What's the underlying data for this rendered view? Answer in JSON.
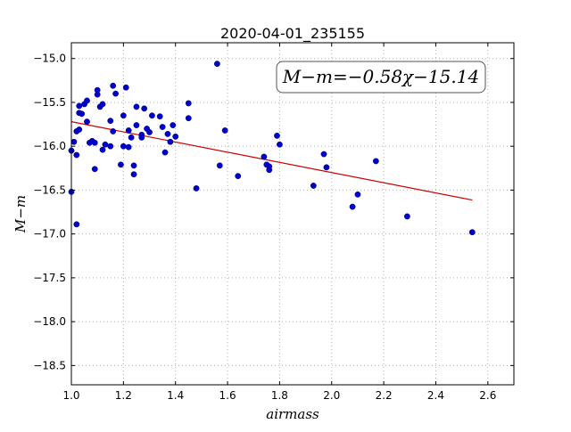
{
  "chart_data": {
    "type": "scatter",
    "title": "2020-04-01_235155",
    "xlabel": "airmass",
    "ylabel": "M−m",
    "xlim": [
      1.0,
      2.7
    ],
    "ylim": [
      -18.72,
      -14.82
    ],
    "y_inverted": true,
    "x_ticks": [
      1.0,
      1.2,
      1.4,
      1.6,
      1.8,
      2.0,
      2.2,
      2.4,
      2.6
    ],
    "x_tick_labels": [
      "1.0",
      "1.2",
      "1.4",
      "1.6",
      "1.8",
      "2.0",
      "2.2",
      "2.4",
      "2.6"
    ],
    "y_ticks": [
      -15.0,
      -15.5,
      -16.0,
      -16.5,
      -17.0,
      -17.5,
      -18.0,
      -18.5
    ],
    "y_tick_labels": [
      "−15.0",
      "−15.5",
      "−16.0",
      "−16.5",
      "−17.0",
      "−17.5",
      "−18.0",
      "−18.5"
    ],
    "grid": true,
    "annotation": "M−m=−0.58χ−15.14",
    "colors": {
      "points": "#0000cc",
      "fit_line": "#cc0000"
    },
    "fit": {
      "slope": -0.58,
      "intercept": -15.14,
      "x_range": [
        1.0,
        2.54
      ]
    },
    "series": [
      {
        "points": [
          [
            1.0,
            -16.52
          ],
          [
            1.0,
            -16.05
          ],
          [
            1.01,
            -15.95
          ],
          [
            1.02,
            -15.83
          ],
          [
            1.02,
            -16.1
          ],
          [
            1.02,
            -16.89
          ],
          [
            1.03,
            -15.54
          ],
          [
            1.03,
            -15.62
          ],
          [
            1.03,
            -15.81
          ],
          [
            1.04,
            -15.63
          ],
          [
            1.05,
            -15.52
          ],
          [
            1.06,
            -15.48
          ],
          [
            1.06,
            -15.72
          ],
          [
            1.07,
            -15.96
          ],
          [
            1.08,
            -15.94
          ],
          [
            1.09,
            -16.26
          ],
          [
            1.09,
            -15.96
          ],
          [
            1.1,
            -15.41
          ],
          [
            1.1,
            -15.36
          ],
          [
            1.11,
            -15.55
          ],
          [
            1.12,
            -15.52
          ],
          [
            1.12,
            -16.04
          ],
          [
            1.13,
            -15.98
          ],
          [
            1.15,
            -16.0
          ],
          [
            1.15,
            -15.71
          ],
          [
            1.16,
            -15.31
          ],
          [
            1.16,
            -15.83
          ],
          [
            1.17,
            -15.4
          ],
          [
            1.19,
            -16.21
          ],
          [
            1.2,
            -15.65
          ],
          [
            1.2,
            -16.0
          ],
          [
            1.21,
            -15.33
          ],
          [
            1.22,
            -15.82
          ],
          [
            1.22,
            -16.01
          ],
          [
            1.23,
            -15.9
          ],
          [
            1.24,
            -16.22
          ],
          [
            1.24,
            -16.32
          ],
          [
            1.25,
            -15.55
          ],
          [
            1.25,
            -15.76
          ],
          [
            1.27,
            -15.87
          ],
          [
            1.27,
            -15.9
          ],
          [
            1.28,
            -15.57
          ],
          [
            1.29,
            -15.8
          ],
          [
            1.3,
            -15.84
          ],
          [
            1.31,
            -15.65
          ],
          [
            1.34,
            -15.66
          ],
          [
            1.35,
            -15.78
          ],
          [
            1.36,
            -16.07
          ],
          [
            1.37,
            -15.86
          ],
          [
            1.38,
            -15.95
          ],
          [
            1.39,
            -15.76
          ],
          [
            1.4,
            -15.89
          ],
          [
            1.45,
            -15.51
          ],
          [
            1.45,
            -15.68
          ],
          [
            1.48,
            -16.48
          ],
          [
            1.56,
            -15.06
          ],
          [
            1.57,
            -16.22
          ],
          [
            1.59,
            -15.82
          ],
          [
            1.64,
            -16.34
          ],
          [
            1.74,
            -16.12
          ],
          [
            1.75,
            -16.21
          ],
          [
            1.76,
            -16.23
          ],
          [
            1.76,
            -16.27
          ],
          [
            1.79,
            -15.88
          ],
          [
            1.8,
            -15.98
          ],
          [
            1.93,
            -16.45
          ],
          [
            1.97,
            -16.09
          ],
          [
            1.98,
            -16.24
          ],
          [
            2.08,
            -16.69
          ],
          [
            2.1,
            -16.55
          ],
          [
            2.17,
            -16.17
          ],
          [
            2.29,
            -16.8
          ],
          [
            2.54,
            -16.98
          ]
        ]
      }
    ]
  }
}
